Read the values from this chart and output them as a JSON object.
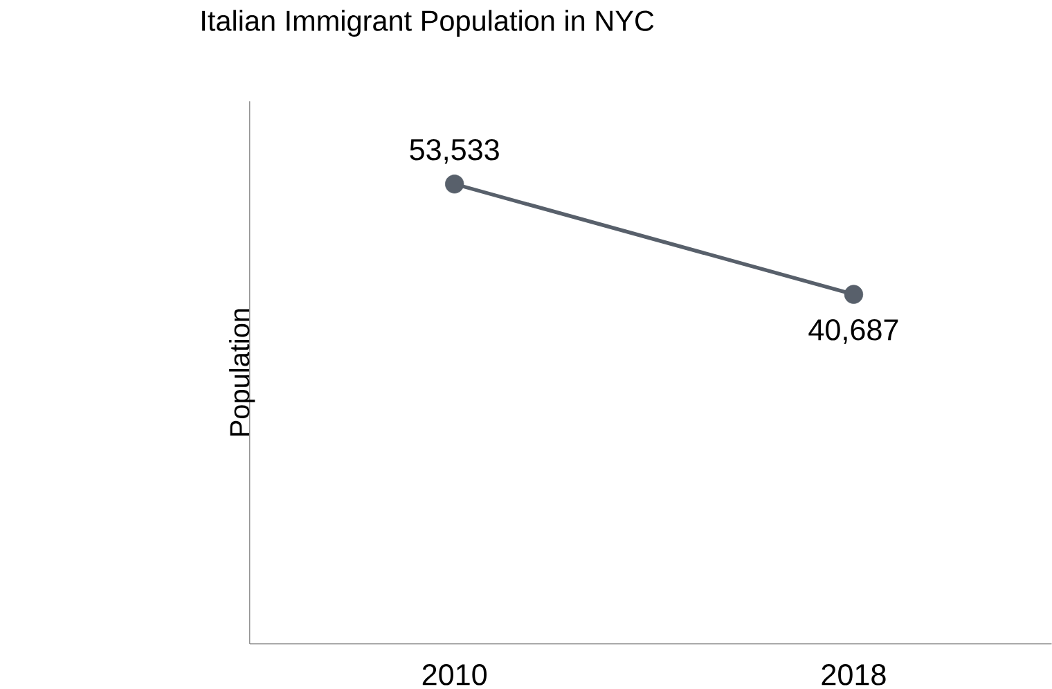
{
  "chart_data": {
    "type": "line",
    "title": "Italian Immigrant Population in NYC",
    "ylabel": "Population",
    "categories": [
      "2010",
      "2018"
    ],
    "series": [
      {
        "color": "#58606b",
        "values": [
          53533,
          40687
        ],
        "value_labels": [
          "53,533",
          "40,687"
        ]
      }
    ],
    "marker": "circle",
    "line_style": "solid",
    "tick_labels": "x"
  }
}
